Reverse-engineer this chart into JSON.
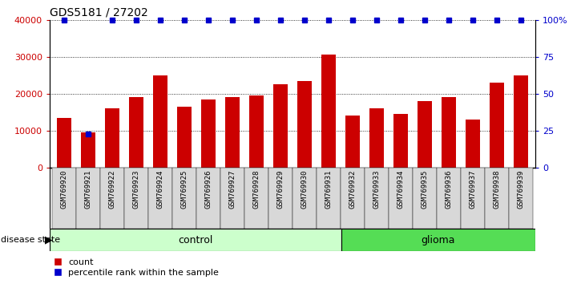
{
  "title": "GDS5181 / 27202",
  "samples": [
    "GSM769920",
    "GSM769921",
    "GSM769922",
    "GSM769923",
    "GSM769924",
    "GSM769925",
    "GSM769926",
    "GSM769927",
    "GSM769928",
    "GSM769929",
    "GSM769930",
    "GSM769931",
    "GSM769932",
    "GSM769933",
    "GSM769934",
    "GSM769935",
    "GSM769936",
    "GSM769937",
    "GSM769938",
    "GSM769939"
  ],
  "bar_values": [
    13500,
    9500,
    16000,
    19000,
    25000,
    16500,
    18500,
    19000,
    19500,
    22500,
    23500,
    30500,
    14000,
    16000,
    14500,
    18000,
    19000,
    13000,
    23000,
    25000
  ],
  "percentile_values": [
    100,
    23,
    100,
    100,
    100,
    100,
    100,
    100,
    100,
    100,
    100,
    100,
    100,
    100,
    100,
    100,
    100,
    100,
    100,
    100
  ],
  "control_count": 12,
  "glioma_count": 8,
  "bar_color": "#cc0000",
  "percentile_color": "#0000cc",
  "control_color": "#ccffcc",
  "glioma_color": "#55dd55",
  "ylim_left": [
    0,
    40000
  ],
  "ylim_right": [
    0,
    100
  ],
  "yticks_left": [
    0,
    10000,
    20000,
    30000,
    40000
  ],
  "ytick_labels_left": [
    "0",
    "10000",
    "20000",
    "30000",
    "40000"
  ],
  "yticks_right": [
    0,
    25,
    50,
    75,
    100
  ],
  "ytick_labels_right": [
    "0",
    "25",
    "50",
    "75",
    "100%"
  ],
  "legend_count_label": "count",
  "legend_percentile_label": "percentile rank within the sample",
  "disease_state_label": "disease state",
  "control_label": "control",
  "glioma_label": "glioma",
  "tick_bg_color": "#d8d8d8",
  "bar_width": 0.6
}
